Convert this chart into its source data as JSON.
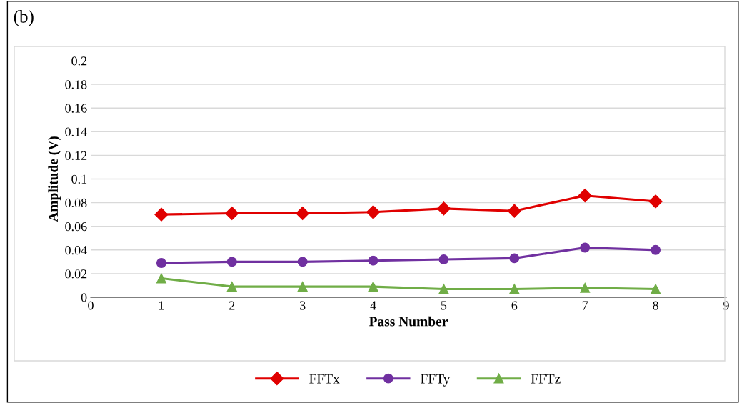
{
  "chart_data": {
    "type": "line",
    "xlabel": "Pass Number",
    "ylabel": "Amplitude (V)",
    "annotations": [
      "(b)"
    ],
    "x": [
      1,
      2,
      3,
      4,
      5,
      6,
      7,
      8
    ],
    "series": [
      {
        "name": "FFTx",
        "color": "#e00000",
        "marker": "diamond",
        "values": [
          0.07,
          0.071,
          0.071,
          0.072,
          0.075,
          0.073,
          0.086,
          0.081
        ]
      },
      {
        "name": "FFTy",
        "color": "#7030a0",
        "marker": "circle",
        "values": [
          0.029,
          0.03,
          0.03,
          0.031,
          0.032,
          0.033,
          0.042,
          0.04
        ]
      },
      {
        "name": "FFTz",
        "color": "#70ad47",
        "marker": "triangle",
        "values": [
          0.016,
          0.009,
          0.009,
          0.009,
          0.007,
          0.007,
          0.008,
          0.007
        ]
      }
    ],
    "xlim": [
      0,
      9
    ],
    "xticks": [
      0,
      1,
      2,
      3,
      4,
      5,
      6,
      7,
      8,
      9
    ],
    "ylim": [
      0,
      0.2
    ],
    "yticks": [
      0,
      0.02,
      0.04,
      0.06,
      0.08,
      0.1,
      0.12,
      0.14,
      0.16,
      0.18,
      0.2
    ],
    "grid": "y",
    "legend": "bottom",
    "line_style": "solid"
  }
}
